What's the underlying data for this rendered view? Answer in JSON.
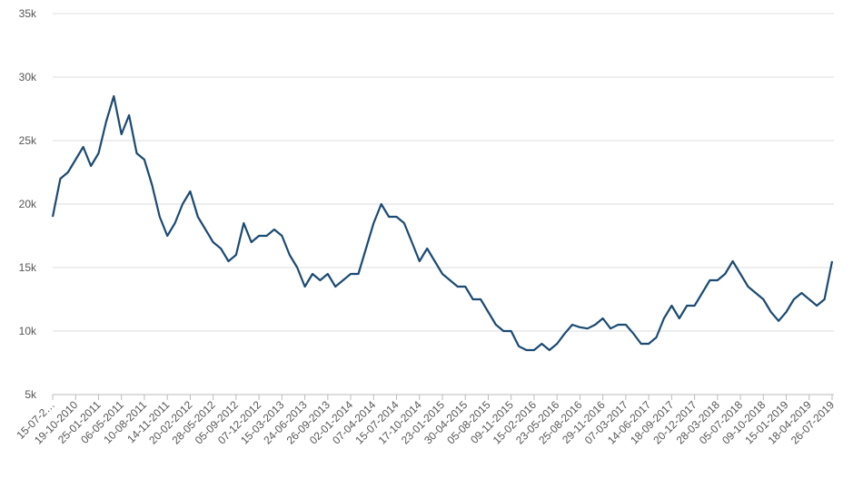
{
  "chart_data": {
    "type": "line",
    "categories": [
      "15-07-2…",
      null,
      null,
      "19-10-2010",
      null,
      null,
      "25-01-2011",
      null,
      null,
      "06-05-2011",
      null,
      null,
      "10-08-2011",
      null,
      null,
      "14-11-2011",
      null,
      null,
      "20-02-2012",
      null,
      null,
      "28-05-2012",
      null,
      null,
      "05-09-2012",
      null,
      null,
      "07-12-2012",
      null,
      null,
      "15-03-2013",
      null,
      null,
      "24-06-2013",
      null,
      null,
      "26-09-2013",
      null,
      null,
      "02-01-2014",
      null,
      null,
      "07-04-2014",
      null,
      null,
      "15-07-2014",
      null,
      null,
      "17-10-2014",
      null,
      null,
      "23-01-2015",
      null,
      null,
      "30-04-2015",
      null,
      null,
      "05-08-2015",
      null,
      null,
      "09-11-2015",
      null,
      null,
      "15-02-2016",
      null,
      null,
      "23-05-2016",
      null,
      null,
      "25-08-2016",
      null,
      null,
      "29-11-2016",
      null,
      null,
      "07-03-2017",
      null,
      null,
      "14-06-2017",
      null,
      null,
      "18-09-2017",
      null,
      null,
      "20-12-2017",
      null,
      null,
      "28-03-2018",
      null,
      null,
      "05-07-2018",
      null,
      null,
      "09-10-2018",
      null,
      null,
      "15-01-2019",
      null,
      null,
      "18-04-2019",
      null,
      null,
      "26-07-2019"
    ],
    "series": [
      {
        "color": "#1b4a73",
        "values": [
          19000,
          22000,
          22500,
          23500,
          24500,
          23000,
          24000,
          26500,
          28500,
          25500,
          27000,
          24000,
          23500,
          21500,
          19000,
          17500,
          18500,
          20000,
          21000,
          19000,
          18000,
          17000,
          16500,
          15500,
          16000,
          18500,
          17000,
          17500,
          17500,
          18000,
          17500,
          16000,
          15000,
          13500,
          14500,
          14000,
          14500,
          13500,
          14000,
          14500,
          14500,
          16500,
          18500,
          20000,
          19000,
          19000,
          18500,
          17000,
          15500,
          16500,
          15500,
          14500,
          14000,
          13500,
          13500,
          12500,
          12500,
          11500,
          10500,
          10000,
          10000,
          8800,
          8500,
          8500,
          9000,
          8500,
          9000,
          9800,
          10500,
          10300,
          10200,
          10500,
          11000,
          10200,
          10500,
          10500,
          9800,
          9000,
          9000,
          9500,
          11000,
          12000,
          11000,
          12000,
          12000,
          13000,
          14000,
          14000,
          14500,
          15500,
          14500,
          13500,
          13000,
          12500,
          11500,
          10800,
          11500,
          12500,
          13000,
          12500,
          12000,
          12500,
          15500
        ]
      }
    ],
    "ylim": [
      5000,
      35000
    ],
    "yticks": [
      {
        "value": 5000,
        "label": "5k"
      },
      {
        "value": 10000,
        "label": "10k"
      },
      {
        "value": 15000,
        "label": "15k"
      },
      {
        "value": 20000,
        "label": "20k"
      },
      {
        "value": 25000,
        "label": "25k"
      },
      {
        "value": 30000,
        "label": "30k"
      },
      {
        "value": 35000,
        "label": "35k"
      }
    ],
    "grid": true
  }
}
